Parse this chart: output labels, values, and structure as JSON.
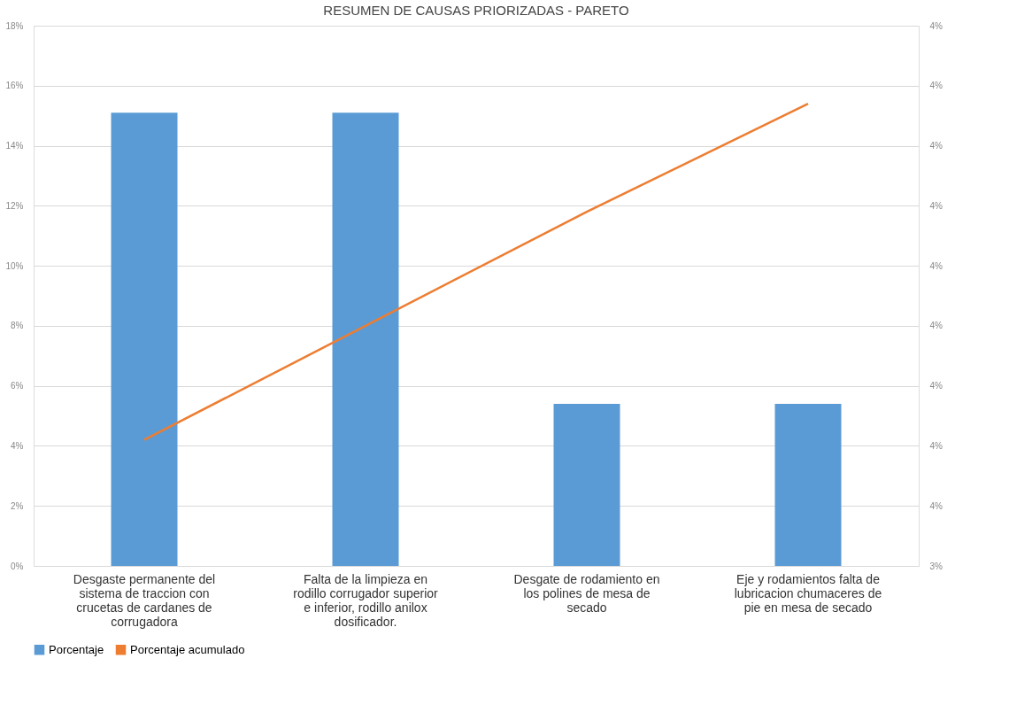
{
  "chart_data": {
    "type": "bar",
    "title": "RESUMEN DE CAUSAS PRIORIZADAS - PARETO",
    "categories": [
      "Desgaste permanente del sistema de traccion con crucetas de cardanes de corrugadora",
      "Falta de la limpieza en rodillo corrugador superior e inferior, rodillo anilox dosificador.",
      "Desgate de rodamiento en los polines de mesa de secado",
      "Eje y rodamientos falta de lubricacion chumaceres de pie en mesa de secado"
    ],
    "series": [
      {
        "name": "Porcentaje",
        "color": "#5b9bd5",
        "values": [
          15.1,
          15.1,
          5.4,
          5.4
        ]
      },
      {
        "name": "Porcentaje acumulado",
        "type": "line",
        "axis": "y2",
        "color": "#ed7d31",
        "values": [
          3.61,
          3.8,
          3.99,
          4.17
        ]
      }
    ],
    "ylim": [
      0,
      18
    ],
    "yticks": [
      {
        "value": 0,
        "label": "0%"
      },
      {
        "value": 2,
        "label": "2%"
      },
      {
        "value": 4,
        "label": "4%"
      },
      {
        "value": 6,
        "label": "6%"
      },
      {
        "value": 8,
        "label": "8%"
      },
      {
        "value": 10,
        "label": "10%"
      },
      {
        "value": 12,
        "label": "12%"
      },
      {
        "value": 14,
        "label": "14%"
      },
      {
        "value": 16,
        "label": "16%"
      },
      {
        "value": 18,
        "label": "18%"
      }
    ],
    "y2lim": [
      3.4,
      4.3
    ],
    "y2ticks": [
      {
        "value": 3.4,
        "label": "3%"
      },
      {
        "value": 3.5,
        "label": "4%"
      },
      {
        "value": 3.6,
        "label": "4%"
      },
      {
        "value": 3.7,
        "label": "4%"
      },
      {
        "value": 3.8,
        "label": "4%"
      },
      {
        "value": 3.9,
        "label": "4%"
      },
      {
        "value": 4.0,
        "label": "4%"
      },
      {
        "value": 4.1,
        "label": "4%"
      },
      {
        "value": 4.2,
        "label": "4%"
      },
      {
        "value": 4.3,
        "label": "4%"
      }
    ],
    "grid": "y",
    "legend": "bottom",
    "marker": "none",
    "line_style": "solid"
  }
}
